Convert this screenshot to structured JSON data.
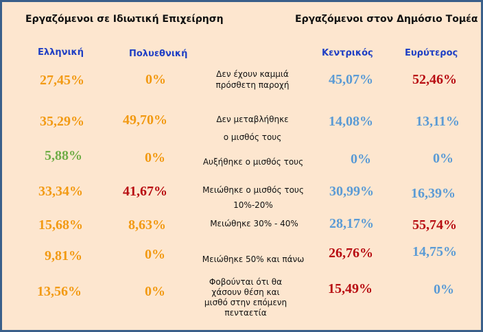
{
  "titles": {
    "private": "Εργαζόμενοι σε Ιδιωτική  Επιχείρηση",
    "public": "Εργαζόμενοι στον Δημόσιο Τομέα"
  },
  "columns": {
    "greek": "Ελληνική",
    "multinational": "Πολυεθνική",
    "central": "Κεντρικός",
    "wider": "Ευρύτερος"
  },
  "rows": [
    {
      "label": [
        "Δεν έχουν καμμιά",
        "πρόσθετη παροχή"
      ],
      "greek": "27,45%",
      "multinational": "0%",
      "central": "45,07%",
      "wider": "52,46%"
    },
    {
      "label": [
        "Δεν  μεταβλήθηκε",
        "ο μισθός τους"
      ],
      "greek": "35,29%",
      "multinational": "49,70%",
      "central": "14,08%",
      "wider": "13,11%"
    },
    {
      "label": [
        "Αυξήθηκε ο μισθός τους"
      ],
      "greek": "5,88%",
      "multinational": "0%",
      "central": "0%",
      "wider": "0%"
    },
    {
      "label": [
        "Μειώθηκε ο μισθός τους",
        "10%-20%"
      ],
      "greek": "33,34%",
      "multinational": "41,67%",
      "central": "30,99%",
      "wider": "16,39%"
    },
    {
      "label": [
        "Μειώθηκε 30% - 40%"
      ],
      "greek": "15,68%",
      "multinational": "8,63%",
      "central": "28,17%",
      "wider": "55,74%"
    },
    {
      "label": [
        "Μειώθηκε 50% και πάνω"
      ],
      "greek": "9,81%",
      "multinational": "0%",
      "central": "26,76%",
      "wider": "14,75%"
    },
    {
      "label": [
        "Φοβούνται ότι θα",
        "χάσουν θέση και",
        "μισθό στην επόμενη",
        "πενταετία"
      ],
      "greek": "13,56%",
      "multinational": "0%",
      "central": "15,49%",
      "wider": "0%"
    }
  ],
  "colors": {
    "background": "#fde6cf",
    "border": "#3a5f8a",
    "orange": "#f29a13",
    "blue": "#5b9bd5",
    "red": "#b80d12",
    "green": "#70ad47",
    "header_blue": "#1f3fc4"
  }
}
